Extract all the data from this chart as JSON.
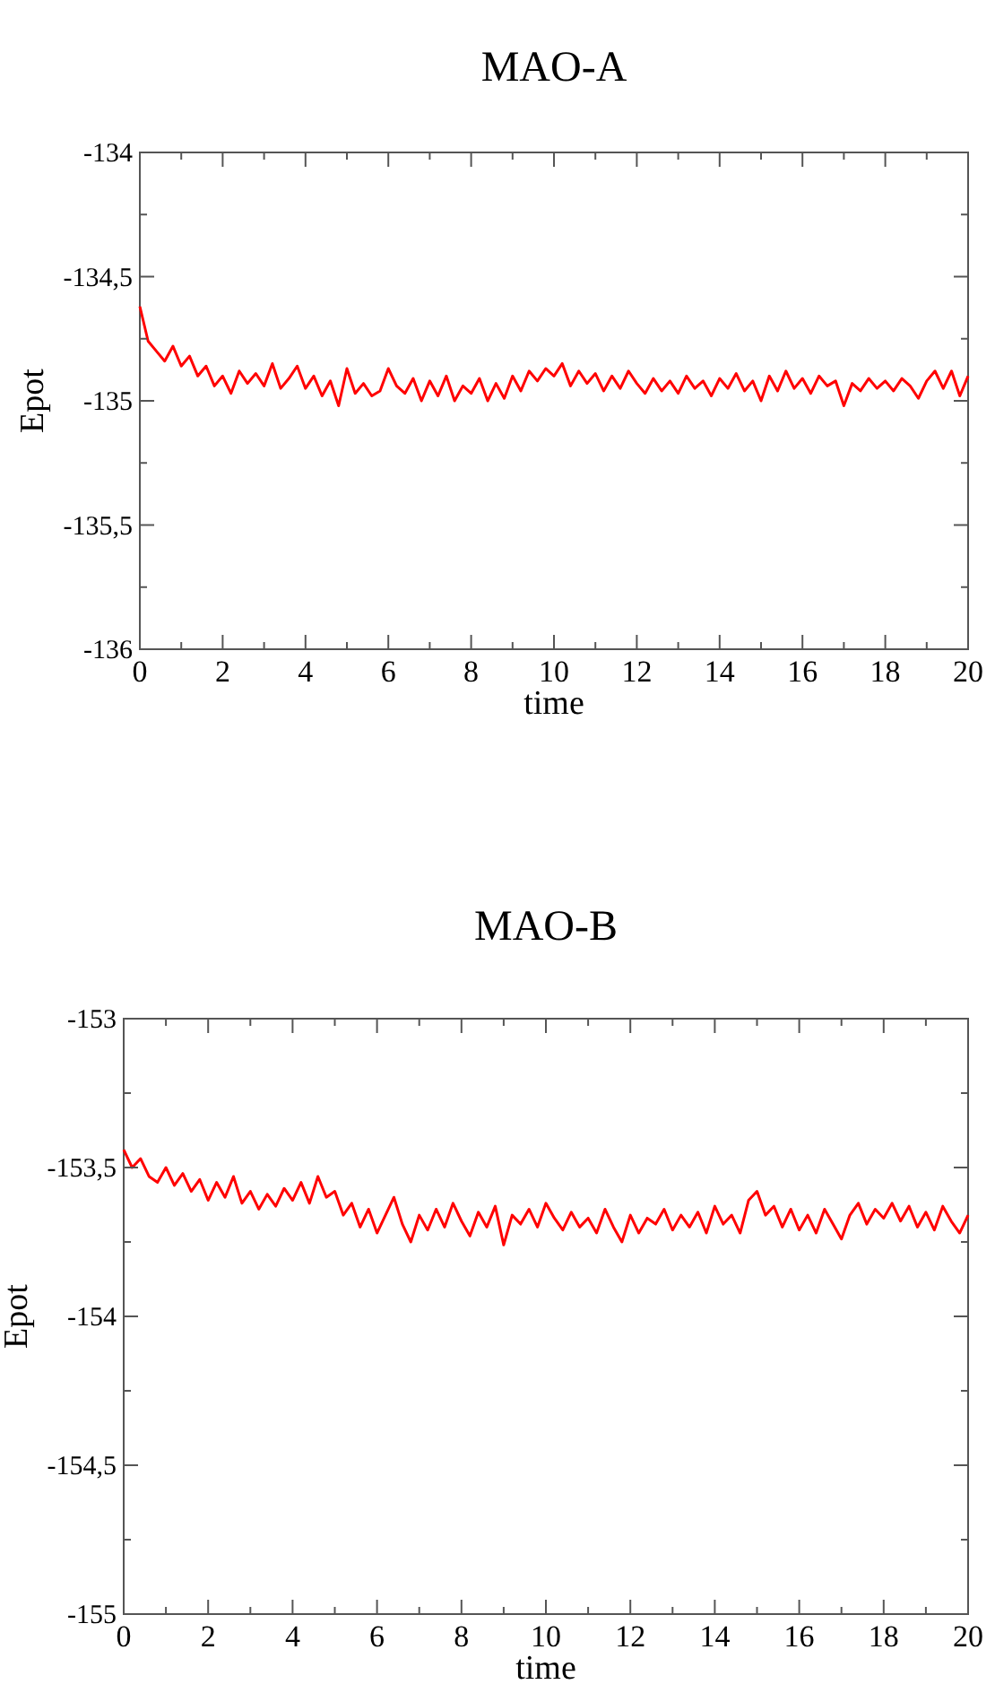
{
  "chart_data": [
    {
      "type": "line",
      "title": "MAO-A",
      "xlabel": "time",
      "ylabel": "Epot",
      "x": [
        0,
        0.2,
        0.4,
        0.6,
        0.8,
        1,
        1.2,
        1.4,
        1.6,
        1.8,
        2,
        2.2,
        2.4,
        2.6,
        2.8,
        3,
        3.2,
        3.4,
        3.6,
        3.8,
        4,
        4.2,
        4.4,
        4.6,
        4.8,
        5,
        5.2,
        5.4,
        5.6,
        5.8,
        6,
        6.2,
        6.4,
        6.6,
        6.8,
        7,
        7.2,
        7.4,
        7.6,
        7.8,
        8,
        8.2,
        8.4,
        8.6,
        8.8,
        9,
        9.2,
        9.4,
        9.6,
        9.8,
        10,
        10.2,
        10.4,
        10.6,
        10.8,
        11,
        11.2,
        11.4,
        11.6,
        11.8,
        12,
        12.2,
        12.4,
        12.6,
        12.8,
        13,
        13.2,
        13.4,
        13.6,
        13.8,
        14,
        14.2,
        14.4,
        14.6,
        14.8,
        15,
        15.2,
        15.4,
        15.6,
        15.8,
        16,
        16.2,
        16.4,
        16.6,
        16.8,
        17,
        17.2,
        17.4,
        17.6,
        17.8,
        18,
        18.2,
        18.4,
        18.6,
        18.8,
        19,
        19.2,
        19.4,
        19.6,
        19.8,
        20
      ],
      "series": [
        {
          "color": "#ff0000",
          "values": [
            -134.62,
            -134.76,
            -134.8,
            -134.84,
            -134.78,
            -134.86,
            -134.82,
            -134.9,
            -134.86,
            -134.94,
            -134.9,
            -134.97,
            -134.88,
            -134.93,
            -134.89,
            -134.94,
            -134.85,
            -134.95,
            -134.91,
            -134.86,
            -134.95,
            -134.9,
            -134.98,
            -134.92,
            -135.02,
            -134.87,
            -134.97,
            -134.93,
            -134.98,
            -134.96,
            -134.87,
            -134.94,
            -134.97,
            -134.91,
            -135.0,
            -134.92,
            -134.98,
            -134.9,
            -135.0,
            -134.94,
            -134.97,
            -134.91,
            -135.0,
            -134.93,
            -134.99,
            -134.9,
            -134.96,
            -134.88,
            -134.92,
            -134.87,
            -134.9,
            -134.85,
            -134.94,
            -134.88,
            -134.93,
            -134.89,
            -134.96,
            -134.9,
            -134.95,
            -134.88,
            -134.93,
            -134.97,
            -134.91,
            -134.96,
            -134.92,
            -134.97,
            -134.9,
            -134.95,
            -134.92,
            -134.98,
            -134.91,
            -134.95,
            -134.89,
            -134.96,
            -134.92,
            -135.0,
            -134.9,
            -134.96,
            -134.88,
            -134.95,
            -134.91,
            -134.97,
            -134.9,
            -134.94,
            -134.92,
            -135.02,
            -134.93,
            -134.96,
            -134.91,
            -134.95,
            -134.92,
            -134.96,
            -134.91,
            -134.94,
            -134.99,
            -134.92,
            -134.88,
            -134.95,
            -134.88,
            -134.98,
            -134.9
          ]
        }
      ],
      "xlim": [
        0,
        20
      ],
      "xticks": [
        0,
        {
          "value": 1,
          "label": null
        },
        2,
        {
          "value": 3,
          "label": null
        },
        4,
        {
          "value": 5,
          "label": null
        },
        6,
        {
          "value": 7,
          "label": null
        },
        8,
        {
          "value": 9,
          "label": null
        },
        10,
        {
          "value": 11,
          "label": null
        },
        12,
        {
          "value": 13,
          "label": null
        },
        14,
        {
          "value": 15,
          "label": null
        },
        16,
        {
          "value": 17,
          "label": null
        },
        18,
        {
          "value": 19,
          "label": null
        },
        20
      ],
      "ylim": [
        -136,
        -134
      ],
      "yticks": [
        -136,
        {
          "value": -135.75,
          "label": null
        },
        {
          "value": -135.5,
          "label": "-135,5"
        },
        {
          "value": -135.25,
          "label": null
        },
        -135,
        {
          "value": -134.75,
          "label": null
        },
        {
          "value": -134.5,
          "label": "-134,5"
        },
        {
          "value": -134.25,
          "label": null
        },
        -134
      ]
    },
    {
      "type": "line",
      "title": "MAO-B",
      "xlabel": "time",
      "ylabel": "Epot",
      "x": [
        0,
        0.2,
        0.4,
        0.6,
        0.8,
        1,
        1.2,
        1.4,
        1.6,
        1.8,
        2,
        2.2,
        2.4,
        2.6,
        2.8,
        3,
        3.2,
        3.4,
        3.6,
        3.8,
        4,
        4.2,
        4.4,
        4.6,
        4.8,
        5,
        5.2,
        5.4,
        5.6,
        5.8,
        6,
        6.2,
        6.4,
        6.6,
        6.8,
        7,
        7.2,
        7.4,
        7.6,
        7.8,
        8,
        8.2,
        8.4,
        8.6,
        8.8,
        9,
        9.2,
        9.4,
        9.6,
        9.8,
        10,
        10.2,
        10.4,
        10.6,
        10.8,
        11,
        11.2,
        11.4,
        11.6,
        11.8,
        12,
        12.2,
        12.4,
        12.6,
        12.8,
        13,
        13.2,
        13.4,
        13.6,
        13.8,
        14,
        14.2,
        14.4,
        14.6,
        14.8,
        15,
        15.2,
        15.4,
        15.6,
        15.8,
        16,
        16.2,
        16.4,
        16.6,
        16.8,
        17,
        17.2,
        17.4,
        17.6,
        17.8,
        18,
        18.2,
        18.4,
        18.6,
        18.8,
        19,
        19.2,
        19.4,
        19.6,
        19.8,
        20
      ],
      "series": [
        {
          "color": "#ff0000",
          "values": [
            -153.44,
            -153.5,
            -153.47,
            -153.53,
            -153.55,
            -153.5,
            -153.56,
            -153.52,
            -153.58,
            -153.54,
            -153.61,
            -153.55,
            -153.6,
            -153.53,
            -153.62,
            -153.58,
            -153.64,
            -153.59,
            -153.63,
            -153.57,
            -153.61,
            -153.55,
            -153.62,
            -153.53,
            -153.6,
            -153.58,
            -153.66,
            -153.62,
            -153.7,
            -153.64,
            -153.72,
            -153.66,
            -153.6,
            -153.69,
            -153.75,
            -153.66,
            -153.71,
            -153.64,
            -153.7,
            -153.62,
            -153.68,
            -153.73,
            -153.65,
            -153.7,
            -153.63,
            -153.76,
            -153.66,
            -153.69,
            -153.64,
            -153.7,
            -153.62,
            -153.67,
            -153.71,
            -153.65,
            -153.7,
            -153.67,
            -153.72,
            -153.64,
            -153.7,
            -153.75,
            -153.66,
            -153.72,
            -153.67,
            -153.69,
            -153.64,
            -153.71,
            -153.66,
            -153.7,
            -153.65,
            -153.72,
            -153.63,
            -153.69,
            -153.66,
            -153.72,
            -153.61,
            -153.58,
            -153.66,
            -153.63,
            -153.7,
            -153.64,
            -153.71,
            -153.66,
            -153.72,
            -153.64,
            -153.69,
            -153.74,
            -153.66,
            -153.62,
            -153.69,
            -153.64,
            -153.67,
            -153.62,
            -153.68,
            -153.63,
            -153.7,
            -153.65,
            -153.71,
            -153.63,
            -153.68,
            -153.72,
            -153.66
          ]
        }
      ],
      "xlim": [
        0,
        20
      ],
      "xticks": [
        0,
        {
          "value": 1,
          "label": null
        },
        2,
        {
          "value": 3,
          "label": null
        },
        4,
        {
          "value": 5,
          "label": null
        },
        6,
        {
          "value": 7,
          "label": null
        },
        8,
        {
          "value": 9,
          "label": null
        },
        10,
        {
          "value": 11,
          "label": null
        },
        12,
        {
          "value": 13,
          "label": null
        },
        14,
        {
          "value": 15,
          "label": null
        },
        16,
        {
          "value": 17,
          "label": null
        },
        18,
        {
          "value": 19,
          "label": null
        },
        20
      ],
      "ylim": [
        -155,
        -153
      ],
      "yticks": [
        -155,
        {
          "value": -154.75,
          "label": null
        },
        {
          "value": -154.5,
          "label": "-154,5"
        },
        {
          "value": -154.25,
          "label": null
        },
        -154,
        {
          "value": -153.75,
          "label": null
        },
        {
          "value": -153.5,
          "label": "-153,5"
        },
        {
          "value": -153.25,
          "label": null
        },
        -153
      ]
    }
  ]
}
